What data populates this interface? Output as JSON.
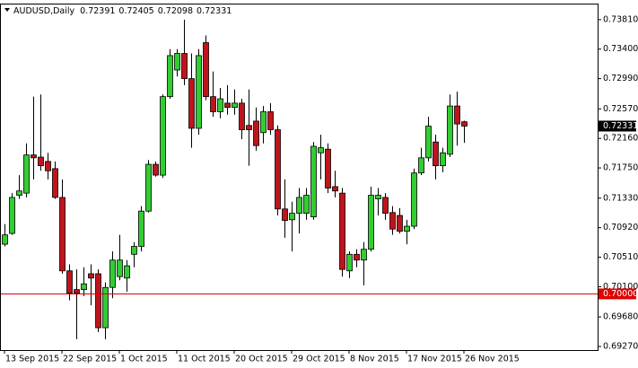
{
  "chart_data": {
    "type": "candlestick",
    "title": "AUDUSD,Daily",
    "categories": [
      "13 Sep 2015",
      null,
      null,
      null,
      null,
      null,
      null,
      null,
      "22 Sep 2015",
      null,
      null,
      null,
      null,
      null,
      null,
      null,
      "1 Oct 2015",
      null,
      null,
      null,
      null,
      null,
      null,
      null,
      "11 Oct 2015",
      null,
      null,
      null,
      null,
      null,
      null,
      null,
      "20 Oct 2015",
      null,
      null,
      null,
      null,
      null,
      null,
      null,
      "29 Oct 2015",
      null,
      null,
      null,
      null,
      null,
      null,
      null,
      "8 Nov 2015",
      null,
      null,
      null,
      null,
      null,
      null,
      null,
      "17 Nov 2015",
      null,
      null,
      null,
      null,
      null,
      null,
      null,
      "26 Nov 2015"
    ],
    "open": [
      0.7069,
      0.7084,
      0.7137,
      0.714,
      0.7193,
      0.719,
      0.7184,
      0.7174,
      0.7134,
      0.7032,
      0.7006,
      0.7006,
      0.7028,
      0.7028,
      0.6953,
      0.7009,
      0.7024,
      0.7022,
      0.7055,
      0.7066,
      0.7115,
      0.718,
      0.7165,
      0.7274,
      0.7311,
      0.7334,
      0.7299,
      0.723,
      0.7349,
      0.7274,
      0.7253,
      0.7265,
      0.7259,
      0.7265,
      0.7234,
      0.724,
      0.7224,
      0.7253,
      0.7228,
      0.7118,
      0.7103,
      0.7112,
      0.7112,
      0.7107,
      0.7196,
      0.7201,
      0.7149,
      0.714,
      0.7032,
      0.7055,
      0.7047,
      0.7062,
      0.7132,
      0.7134,
      0.7113,
      0.7109,
      0.7087,
      0.7094,
      0.7168,
      0.7189,
      0.7211,
      0.7178,
      0.7194,
      0.7261,
      0.72391
    ],
    "high": [
      0.7097,
      0.714,
      0.7165,
      0.7209,
      0.7274,
      0.7277,
      0.7196,
      0.7184,
      0.7159,
      0.7041,
      0.7034,
      0.7037,
      0.7041,
      0.7034,
      0.7016,
      0.7059,
      0.7082,
      0.7047,
      0.7072,
      0.7122,
      0.7186,
      0.7184,
      0.7277,
      0.734,
      0.734,
      0.7381,
      0.7334,
      0.734,
      0.7359,
      0.7309,
      0.7286,
      0.729,
      0.7284,
      0.7271,
      0.7284,
      0.7259,
      0.7261,
      0.7265,
      0.7234,
      0.7159,
      0.7128,
      0.7147,
      0.7147,
      0.7211,
      0.7221,
      0.7209,
      0.7171,
      0.7147,
      0.7059,
      0.7062,
      0.7072,
      0.7149,
      0.7147,
      0.714,
      0.7122,
      0.7119,
      0.7103,
      0.7174,
      0.7203,
      0.7246,
      0.7221,
      0.7203,
      0.7277,
      0.7281,
      0.72405
    ],
    "low": [
      0.7066,
      0.7082,
      0.7132,
      0.7134,
      0.7159,
      0.7171,
      0.7159,
      0.7132,
      0.7028,
      0.6991,
      0.6937,
      0.6997,
      0.6984,
      0.6947,
      0.6937,
      0.6994,
      0.7019,
      0.7003,
      0.7037,
      0.7059,
      0.7113,
      0.7163,
      0.7161,
      0.7271,
      0.7302,
      0.729,
      0.7203,
      0.7221,
      0.7269,
      0.7246,
      0.7244,
      0.7249,
      0.7249,
      0.7215,
      0.7178,
      0.7199,
      0.7209,
      0.7221,
      0.7109,
      0.7078,
      0.7059,
      0.7084,
      0.7103,
      0.7103,
      0.7159,
      0.714,
      0.7134,
      0.7024,
      0.7022,
      0.7037,
      0.7012,
      0.7059,
      0.7109,
      0.7103,
      0.7082,
      0.7084,
      0.7069,
      0.709,
      0.7165,
      0.7184,
      0.7159,
      0.7169,
      0.719,
      0.7206,
      0.72098
    ],
    "close": [
      0.7082,
      0.7134,
      0.7143,
      0.7193,
      0.7189,
      0.7178,
      0.7171,
      0.7134,
      0.7032,
      0.7001,
      0.7001,
      0.7014,
      0.7022,
      0.6953,
      0.7009,
      0.7047,
      0.7047,
      0.7039,
      0.7066,
      0.7115,
      0.718,
      0.7165,
      0.7274,
      0.7331,
      0.7334,
      0.7299,
      0.723,
      0.7331,
      0.7274,
      0.7253,
      0.7271,
      0.7259,
      0.7265,
      0.7228,
      0.7228,
      0.7206,
      0.7253,
      0.7228,
      0.7118,
      0.7102,
      0.7112,
      0.7134,
      0.7137,
      0.7205,
      0.7203,
      0.7147,
      0.7143,
      0.7034,
      0.7055,
      0.7047,
      0.7062,
      0.7137,
      0.7137,
      0.7112,
      0.709,
      0.7087,
      0.7094,
      0.7168,
      0.7189,
      0.7233,
      0.7178,
      0.7196,
      0.7261,
      0.7236,
      0.72331
    ],
    "up_color": "#32cd32",
    "down_color": "#c0141c",
    "ylim": [
      0.6922,
      0.7402
    ],
    "yticks": [
      {
        "value": 0.7381,
        "label": "0.73810"
      },
      {
        "value": 0.734,
        "label": "0.73400"
      },
      {
        "value": 0.7299,
        "label": "0.72990"
      },
      {
        "value": 0.7257,
        "label": "0.72570"
      },
      {
        "value": 0.7216,
        "label": "0.72160"
      },
      {
        "value": 0.7175,
        "label": "0.71750"
      },
      {
        "value": 0.7133,
        "label": "0.71330"
      },
      {
        "value": 0.7092,
        "label": "0.70920"
      },
      {
        "value": 0.7051,
        "label": "0.70510"
      },
      {
        "value": 0.701,
        "label": "0.70100"
      },
      {
        "value": 0.6968,
        "label": "0.69680"
      },
      {
        "value": 0.6927,
        "label": "0.69270"
      }
    ],
    "level_line": {
      "value": 0.7,
      "label": "0.70000",
      "color": "#e00000"
    },
    "grid": false
  }
}
